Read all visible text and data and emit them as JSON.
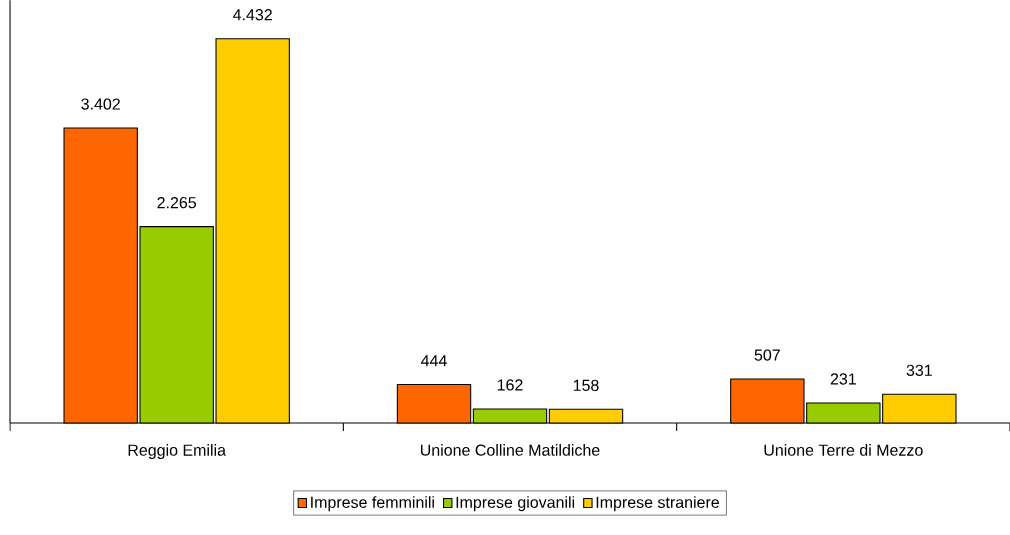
{
  "chart_data": {
    "type": "bar",
    "categories": [
      "Reggio Emilia",
      "Unione Colline Matildiche",
      "Unione Terre di Mezzo"
    ],
    "series": [
      {
        "name": "Imprese femminili",
        "color": "#ff6600",
        "values": [
          3402,
          444,
          507
        ],
        "value_labels": [
          "3.402",
          "444",
          "507"
        ]
      },
      {
        "name": "Imprese giovanili",
        "color": "#99cc00",
        "values": [
          2265,
          162,
          231
        ],
        "value_labels": [
          "2.265",
          "162",
          "231"
        ]
      },
      {
        "name": "Imprese straniere",
        "color": "#ffcc00",
        "values": [
          4432,
          158,
          331
        ],
        "value_labels": [
          "4.432",
          "158",
          "331"
        ]
      }
    ],
    "legend": "bottom"
  }
}
